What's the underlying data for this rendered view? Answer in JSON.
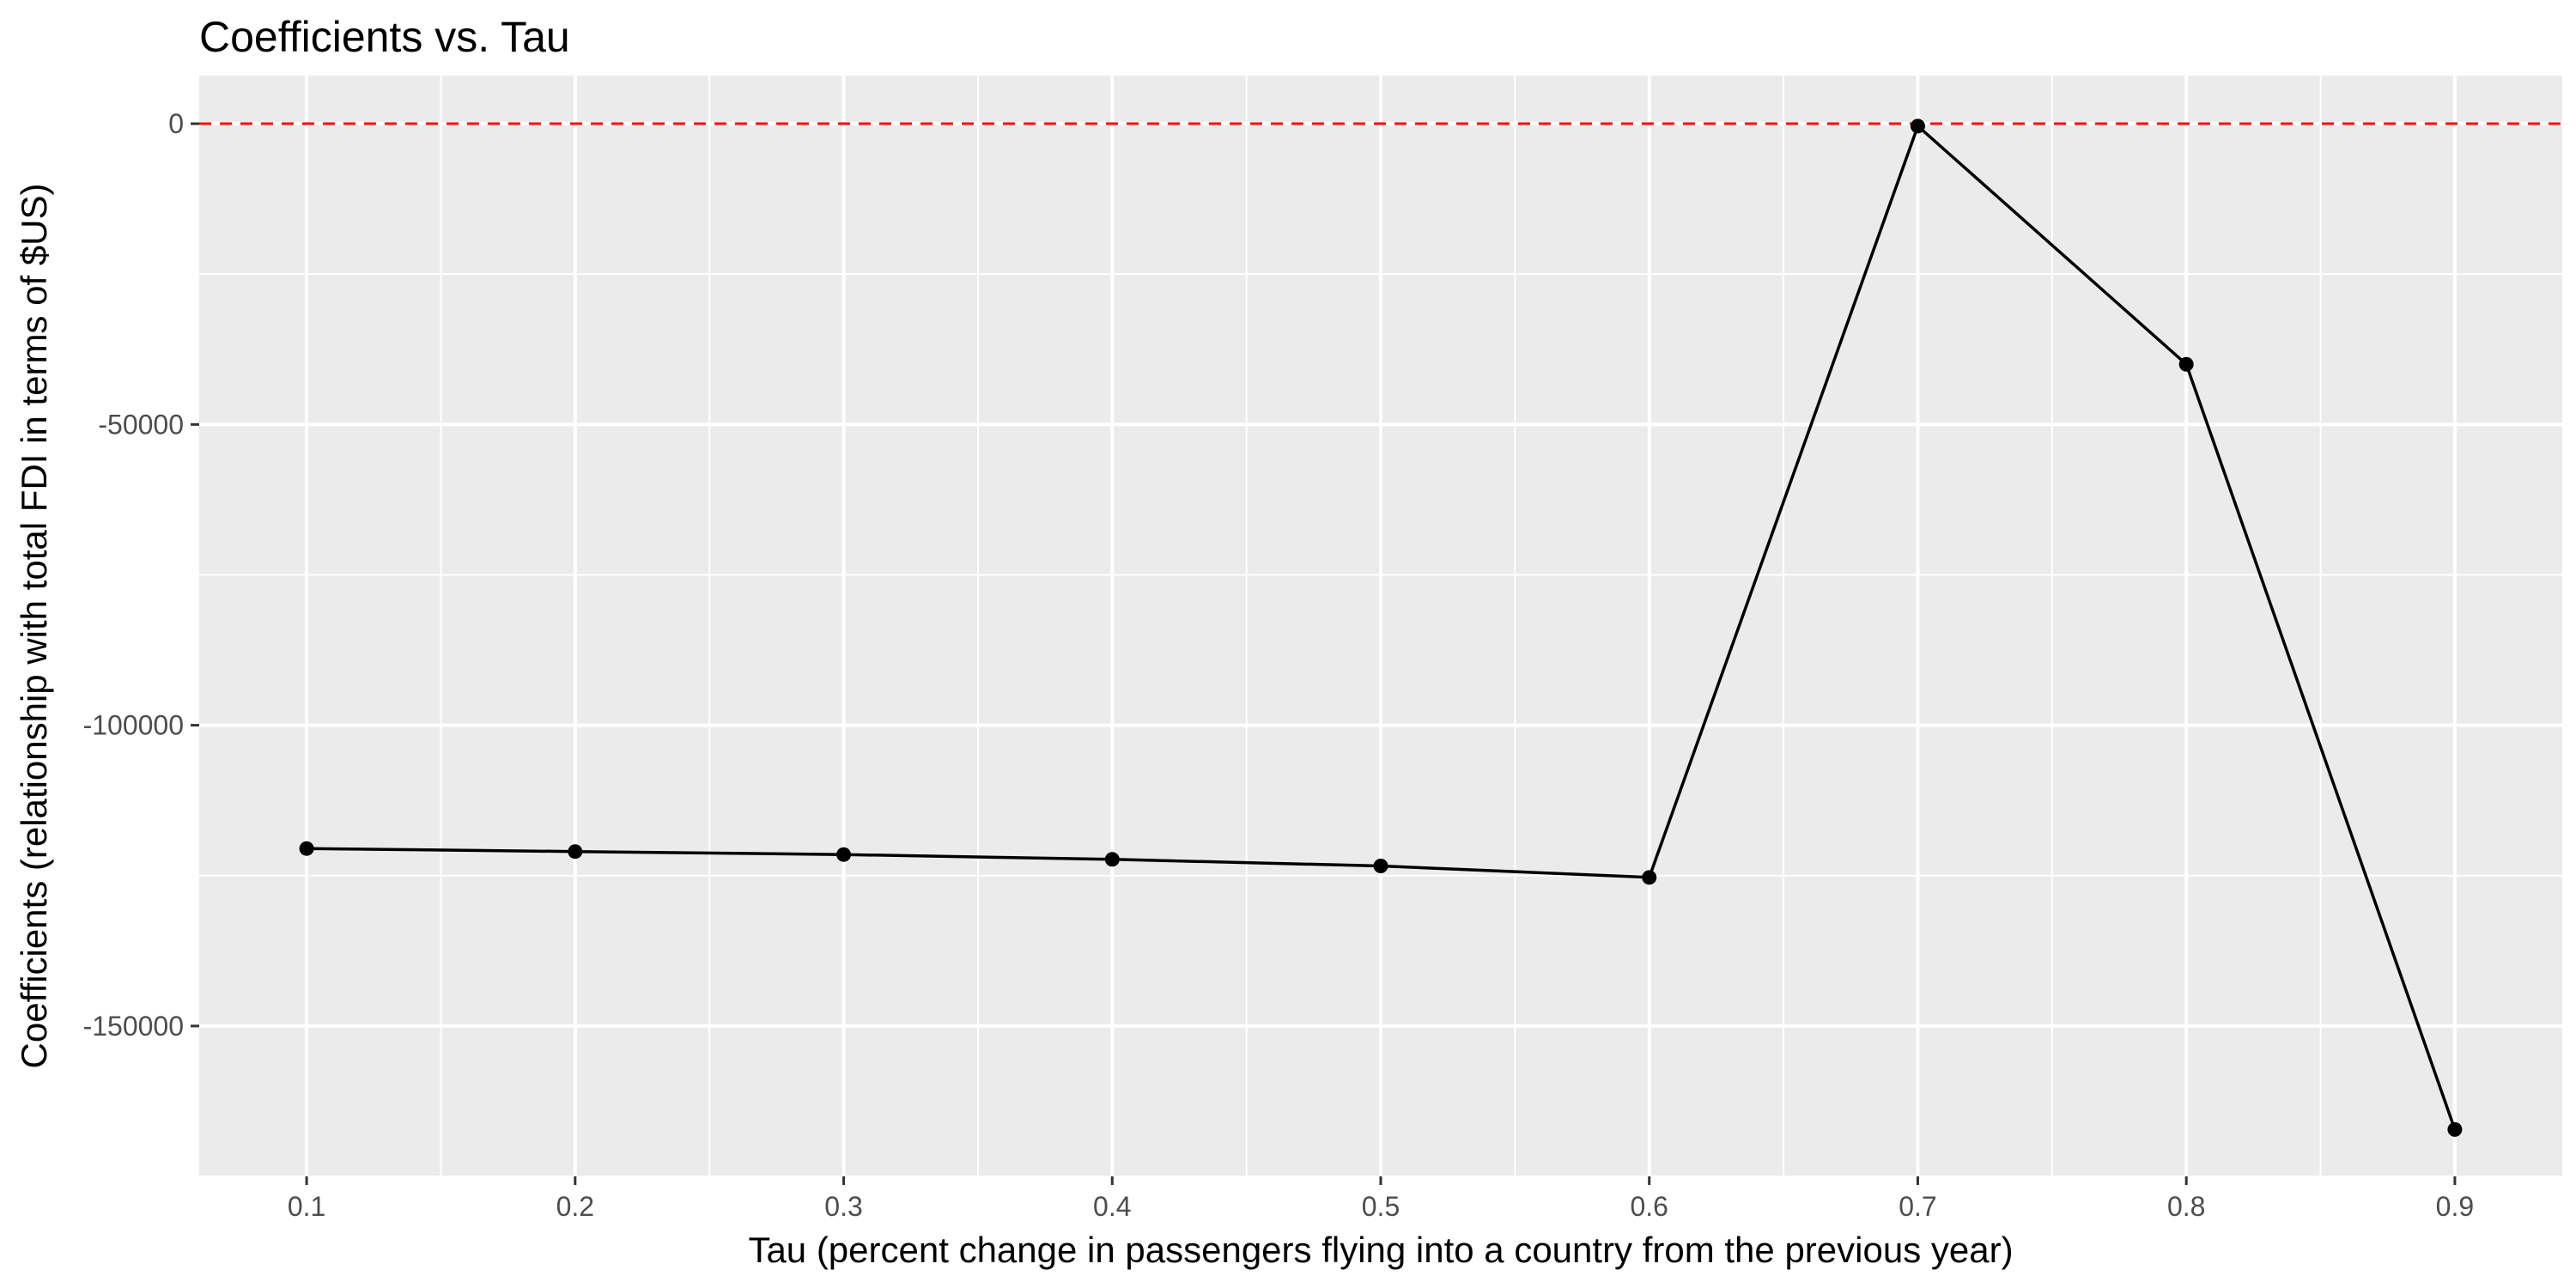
{
  "chart_data": {
    "type": "line",
    "title": "Coefficients vs. Tau",
    "xlabel": "Tau (percent change in passengers flying into a country from the previous year)",
    "ylabel": "Coefficients (relationship with total FDI in terms of $US)",
    "x": [
      0.1,
      0.2,
      0.3,
      0.4,
      0.5,
      0.6,
      0.7,
      0.8,
      0.9
    ],
    "series": [
      {
        "values": [
          -120500,
          -121000,
          -121500,
          -122300,
          -123400,
          -125300,
          -400,
          -40000,
          -167200
        ],
        "color": "#000000",
        "markers": true
      }
    ],
    "x_ticks": [
      "0.1",
      "0.2",
      "0.3",
      "0.4",
      "0.5",
      "0.6",
      "0.7",
      "0.8",
      "0.9"
    ],
    "y_ticks": [
      "0",
      "-50000",
      "-100000",
      "-150000"
    ],
    "xlim": [
      0.06,
      0.94
    ],
    "ylim": [
      -175000,
      8000
    ],
    "reference_line": {
      "y": 0,
      "color": "#ff0000",
      "style": "dashed"
    },
    "panel_background": "#ebebeb",
    "grid_color": "#ffffff",
    "grid": true,
    "legend": "none"
  }
}
